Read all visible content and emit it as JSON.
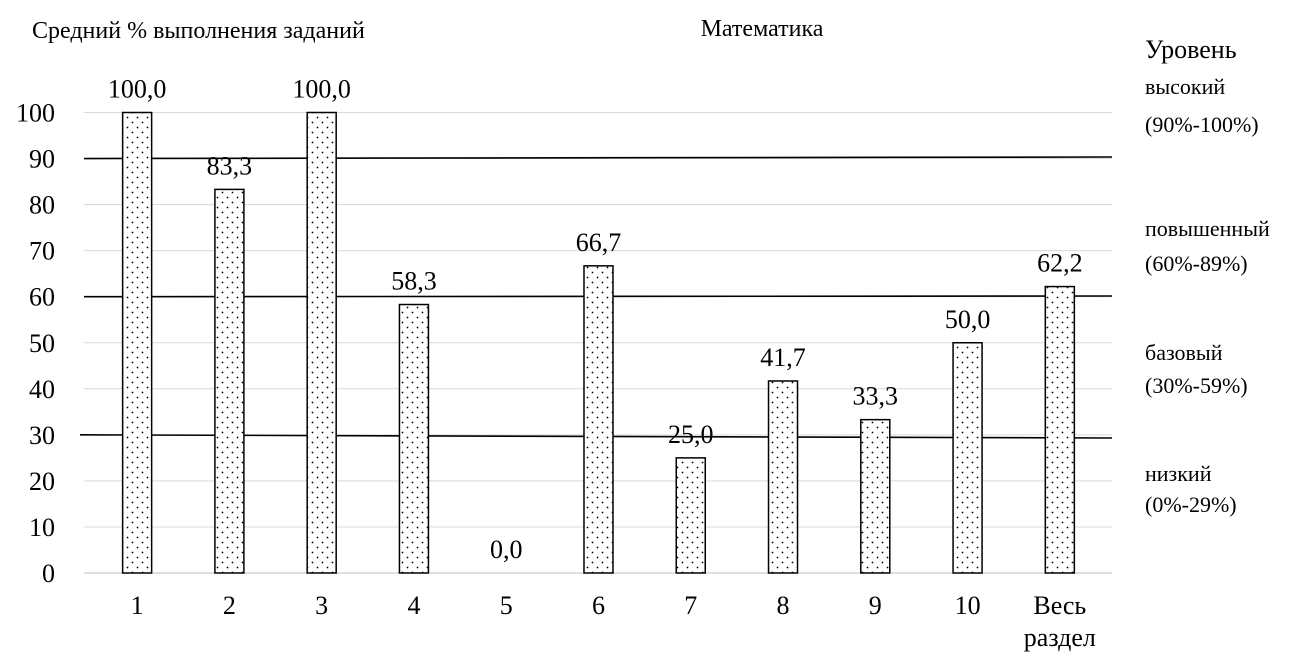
{
  "chart_data": {
    "type": "bar",
    "title": "Математика",
    "ylabel": "Средний % выполнения заданий",
    "categories": [
      "1",
      "2",
      "3",
      "4",
      "5",
      "6",
      "7",
      "8",
      "9",
      "10",
      "Весь раздел"
    ],
    "values": [
      100.0,
      83.3,
      100.0,
      58.3,
      0.0,
      66.7,
      25.0,
      41.7,
      33.3,
      50.0,
      62.2
    ],
    "value_labels": [
      "100,0",
      "83,3",
      "100,0",
      "58,3",
      "0,0",
      "66,7",
      "25,0",
      "41,7",
      "33,3",
      "50,0",
      "62,2"
    ],
    "ylim": [
      0,
      100
    ],
    "yticks": [
      "0",
      "10",
      "20",
      "30",
      "40",
      "50",
      "60",
      "70",
      "80",
      "90",
      "100"
    ],
    "grid": true,
    "bar_fill": "dotted",
    "threshold_lines": [
      90,
      60,
      30
    ],
    "levels": {
      "heading": "Уровень",
      "items": [
        {
          "name": "высокий",
          "range": "(90%-100%)"
        },
        {
          "name": "повышенный",
          "range": "(60%-89%)"
        },
        {
          "name": "базовый",
          "range": "(30%-59%)"
        },
        {
          "name": "низкий",
          "range": "(0%-29%)"
        }
      ]
    }
  }
}
